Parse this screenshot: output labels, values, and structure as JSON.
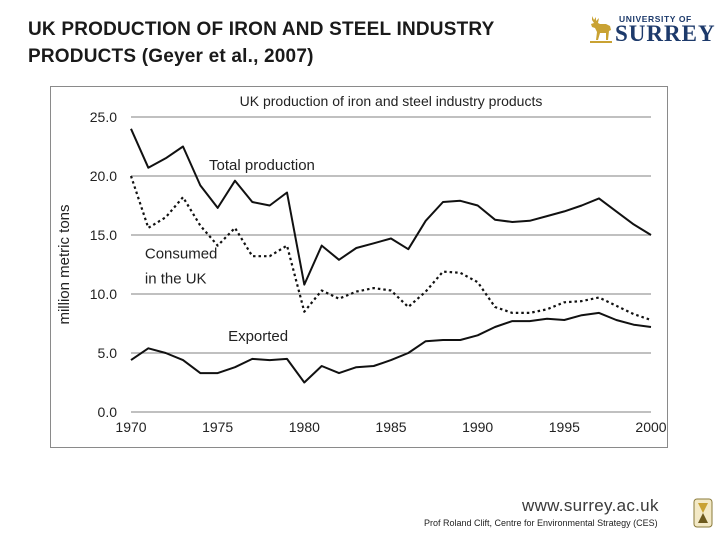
{
  "slide": {
    "title": "UK PRODUCTION OF IRON AND STEEL INDUSTRY PRODUCTS (Geyer et al., 2007)",
    "logo_small": "UNIVERSITY OF",
    "logo_big": "SURREY",
    "website": "www.surrey.ac.uk",
    "credit": "Prof Roland Clift, Centre for Environmental Strategy (CES)"
  },
  "colors": {
    "text": "#1a1a1a",
    "brand": "#1d3a6b",
    "gold": "#c9a233",
    "grid": "#999999",
    "line": "#111111"
  },
  "chart_data": {
    "type": "line",
    "title": "UK production of iron and steel industry products",
    "xlabel": "",
    "ylabel": "million metric tons",
    "xlim": [
      1970,
      2000
    ],
    "ylim": [
      0,
      25
    ],
    "x_ticks": [
      1970,
      1975,
      1980,
      1985,
      1990,
      1995,
      2000
    ],
    "y_ticks": [
      "0.0",
      "5.0",
      "10.0",
      "15.0",
      "20.0",
      "25.0"
    ],
    "grid": "horizontal",
    "series": [
      {
        "name": "Total production",
        "style": "solid",
        "x": [
          1970,
          1971,
          1972,
          1973,
          1974,
          1975,
          1976,
          1977,
          1978,
          1979,
          1980,
          1981,
          1982,
          1983,
          1984,
          1985,
          1986,
          1987,
          1988,
          1989,
          1990,
          1991,
          1992,
          1993,
          1994,
          1995,
          1996,
          1997,
          1998,
          1999,
          2000
        ],
        "values": [
          24.0,
          20.7,
          21.5,
          22.5,
          19.2,
          17.3,
          19.6,
          17.8,
          17.5,
          18.6,
          10.8,
          14.1,
          12.9,
          13.9,
          14.3,
          14.7,
          13.8,
          16.2,
          17.8,
          17.9,
          17.5,
          16.3,
          16.1,
          16.2,
          16.6,
          17.0,
          17.5,
          18.1,
          17.0,
          15.9,
          15.0
        ]
      },
      {
        "name": "Consumed in the UK",
        "style": "dotted",
        "x": [
          1970,
          1971,
          1972,
          1973,
          1974,
          1975,
          1976,
          1977,
          1978,
          1979,
          1980,
          1981,
          1982,
          1983,
          1984,
          1985,
          1986,
          1987,
          1988,
          1989,
          1990,
          1991,
          1992,
          1993,
          1994,
          1995,
          1996,
          1997,
          1998,
          1999,
          2000
        ],
        "values": [
          20.0,
          15.6,
          16.5,
          18.2,
          15.8,
          14.1,
          15.6,
          13.2,
          13.2,
          14.1,
          8.5,
          10.3,
          9.6,
          10.2,
          10.5,
          10.3,
          8.9,
          10.2,
          11.9,
          11.8,
          11.0,
          8.9,
          8.4,
          8.4,
          8.7,
          9.3,
          9.4,
          9.7,
          9.0,
          8.3,
          7.8
        ]
      },
      {
        "name": "Exported",
        "style": "solid",
        "x": [
          1970,
          1971,
          1972,
          1973,
          1974,
          1975,
          1976,
          1977,
          1978,
          1979,
          1980,
          1981,
          1982,
          1983,
          1984,
          1985,
          1986,
          1987,
          1988,
          1989,
          1990,
          1991,
          1992,
          1993,
          1994,
          1995,
          1996,
          1997,
          1998,
          1999,
          2000
        ],
        "values": [
          4.4,
          5.4,
          5.0,
          4.4,
          3.3,
          3.3,
          3.8,
          4.5,
          4.4,
          4.5,
          2.5,
          3.9,
          3.3,
          3.8,
          3.9,
          4.4,
          5.0,
          6.0,
          6.1,
          6.1,
          6.5,
          7.2,
          7.7,
          7.7,
          7.9,
          7.8,
          8.2,
          8.4,
          7.8,
          7.4,
          7.2
        ]
      }
    ],
    "annotations": [
      {
        "label": "Total production",
        "x": 1974.5,
        "y": 20.5
      },
      {
        "label": "Consumed",
        "x": 1970.8,
        "y": 13.0
      },
      {
        "label": "in the UK",
        "x": 1970.8,
        "y": 10.9
      },
      {
        "label": "Exported",
        "x": 1975.6,
        "y": 6.0
      }
    ]
  }
}
